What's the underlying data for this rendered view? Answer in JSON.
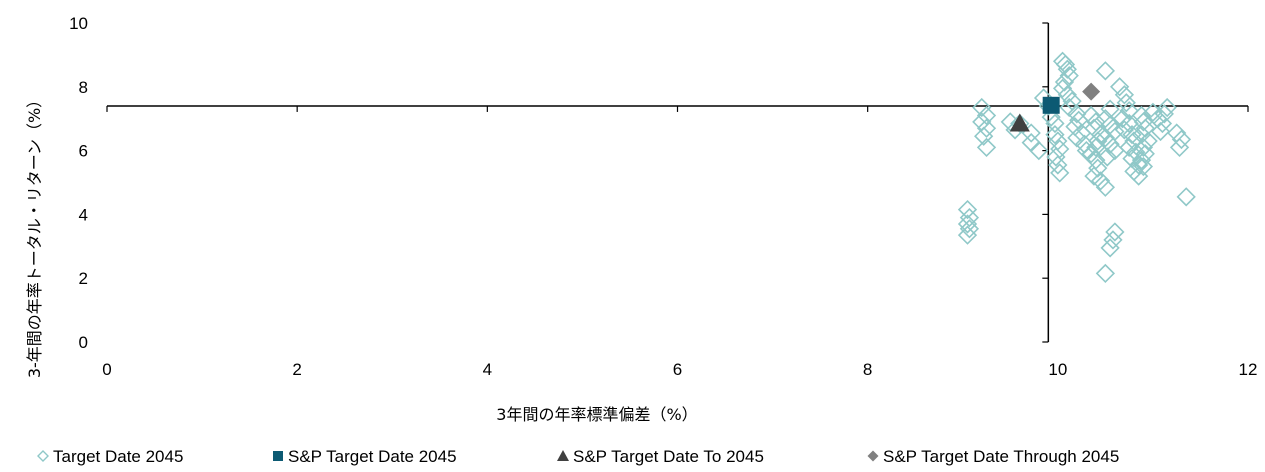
{
  "chart_data": {
    "type": "scatter",
    "xlabel": "3年間の年率標準偏差（%）",
    "ylabel": "3-年間の年率トータル・リターン（%）",
    "xlim": [
      0,
      12
    ],
    "ylim": [
      0,
      10
    ],
    "x_ticks": [
      "0",
      "2",
      "4",
      "6",
      "8",
      "10",
      "12"
    ],
    "y_ticks": [
      "0",
      "2",
      "4",
      "6",
      "8",
      "10"
    ],
    "axes_cross": {
      "x": 9.9,
      "y": 7.4
    },
    "legend_position": "bottom",
    "series": [
      {
        "name": "Target Date 2045",
        "marker": "diamond-open",
        "color": "#8fc8c8",
        "points": [
          [
            9.2,
            7.35
          ],
          [
            9.25,
            7.1
          ],
          [
            9.2,
            6.9
          ],
          [
            9.25,
            6.7
          ],
          [
            9.22,
            6.45
          ],
          [
            9.25,
            6.1
          ],
          [
            9.05,
            4.15
          ],
          [
            9.07,
            3.9
          ],
          [
            9.05,
            3.7
          ],
          [
            9.07,
            3.55
          ],
          [
            9.05,
            3.35
          ],
          [
            9.5,
            6.9
          ],
          [
            9.6,
            6.85
          ],
          [
            9.55,
            6.65
          ],
          [
            9.72,
            6.55
          ],
          [
            9.72,
            6.25
          ],
          [
            9.8,
            6.0
          ],
          [
            9.85,
            7.65
          ],
          [
            9.9,
            7.4
          ],
          [
            9.93,
            7.05
          ],
          [
            9.97,
            6.85
          ],
          [
            9.97,
            6.5
          ],
          [
            10.0,
            6.3
          ],
          [
            10.02,
            6.05
          ],
          [
            9.98,
            5.8
          ],
          [
            10.0,
            5.55
          ],
          [
            10.02,
            5.3
          ],
          [
            10.05,
            8.8
          ],
          [
            10.08,
            8.7
          ],
          [
            10.1,
            8.55
          ],
          [
            10.12,
            8.35
          ],
          [
            10.07,
            8.15
          ],
          [
            10.05,
            7.95
          ],
          [
            10.1,
            7.75
          ],
          [
            10.15,
            7.55
          ],
          [
            10.12,
            7.35
          ],
          [
            10.2,
            7.15
          ],
          [
            10.22,
            6.95
          ],
          [
            10.18,
            6.75
          ],
          [
            10.25,
            6.55
          ],
          [
            10.2,
            6.4
          ],
          [
            10.28,
            6.2
          ],
          [
            10.3,
            6.0
          ],
          [
            10.35,
            7.1
          ],
          [
            10.4,
            6.9
          ],
          [
            10.38,
            6.7
          ],
          [
            10.45,
            6.5
          ],
          [
            10.42,
            6.3
          ],
          [
            10.4,
            6.1
          ],
          [
            10.35,
            5.9
          ],
          [
            10.4,
            5.7
          ],
          [
            10.42,
            5.45
          ],
          [
            10.38,
            5.2
          ],
          [
            10.45,
            5.05
          ],
          [
            10.5,
            4.85
          ],
          [
            10.5,
            8.5
          ],
          [
            10.55,
            7.3
          ],
          [
            10.5,
            7.0
          ],
          [
            10.55,
            6.8
          ],
          [
            10.6,
            6.6
          ],
          [
            10.5,
            6.4
          ],
          [
            10.55,
            6.2
          ],
          [
            10.6,
            6.0
          ],
          [
            10.52,
            5.8
          ],
          [
            10.6,
            3.45
          ],
          [
            10.58,
            3.2
          ],
          [
            10.55,
            2.95
          ],
          [
            10.5,
            2.15
          ],
          [
            10.65,
            8.0
          ],
          [
            10.7,
            7.75
          ],
          [
            10.72,
            7.5
          ],
          [
            10.75,
            7.25
          ],
          [
            10.68,
            7.0
          ],
          [
            10.75,
            6.85
          ],
          [
            10.7,
            6.65
          ],
          [
            10.78,
            6.5
          ],
          [
            10.8,
            6.3
          ],
          [
            10.75,
            6.1
          ],
          [
            10.82,
            5.95
          ],
          [
            10.78,
            5.75
          ],
          [
            10.85,
            5.55
          ],
          [
            10.8,
            5.35
          ],
          [
            10.85,
            5.2
          ],
          [
            10.88,
            7.1
          ],
          [
            10.9,
            6.9
          ],
          [
            10.92,
            6.7
          ],
          [
            10.88,
            6.5
          ],
          [
            10.95,
            6.3
          ],
          [
            10.9,
            6.1
          ],
          [
            10.92,
            5.9
          ],
          [
            10.88,
            5.7
          ],
          [
            10.9,
            5.5
          ],
          [
            11.0,
            7.2
          ],
          [
            11.05,
            7.0
          ],
          [
            11.1,
            6.85
          ],
          [
            11.15,
            7.35
          ],
          [
            11.12,
            7.15
          ],
          [
            11.08,
            6.6
          ],
          [
            11.25,
            6.55
          ],
          [
            11.3,
            6.35
          ],
          [
            11.28,
            6.1
          ],
          [
            11.35,
            4.55
          ]
        ]
      },
      {
        "name": "S&P Target Date 2045",
        "marker": "square",
        "color": "#0c5a73",
        "points": [
          [
            9.93,
            7.42
          ]
        ]
      },
      {
        "name": "S&P Target Date To 2045",
        "marker": "triangle",
        "color": "#404040",
        "points": [
          [
            9.6,
            6.85
          ]
        ]
      },
      {
        "name": "S&P Target Date Through 2045",
        "marker": "diamond",
        "color": "#808080",
        "points": [
          [
            10.35,
            7.85
          ]
        ]
      }
    ]
  }
}
